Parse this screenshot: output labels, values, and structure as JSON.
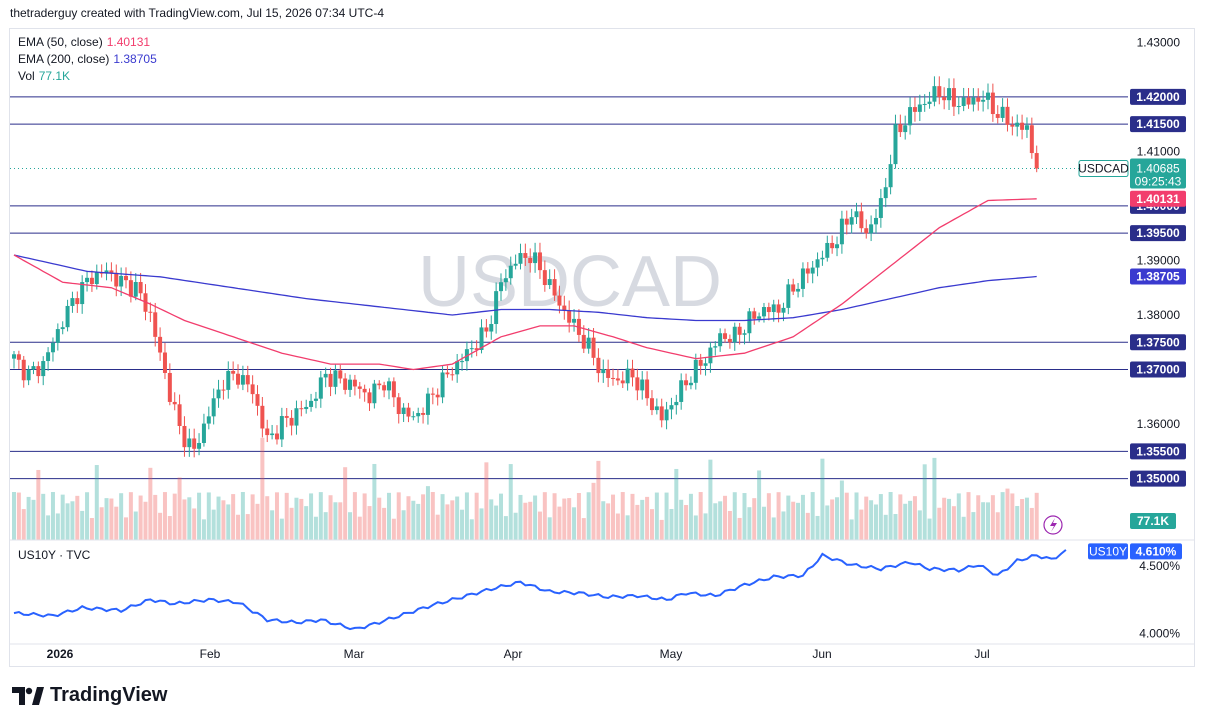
{
  "header": "thetraderguy created with TradingView.com, Jul 15, 2026 07:34 UTC-4",
  "legend": {
    "ema50_label": "EMA (50, close)",
    "ema50_value": "1.40131",
    "ema200_label": "EMA (200, close)",
    "ema200_value": "1.38705",
    "vol_label": "Vol",
    "vol_value": "77.1K"
  },
  "watermark": "USDCAD",
  "indicator_label": "US10Y · TVC",
  "brand": "TradingView",
  "colors": {
    "up": "#26a69a",
    "down": "#ef5350",
    "ema50": "#f23d6d",
    "ema200": "#3a3acf",
    "hline": "#2a2e8a",
    "us10y": "#2962ff",
    "price_badge": "#26a69a"
  },
  "chart_data": {
    "type": "candlestick",
    "symbol": "USDCAD",
    "ylim": [
      1.3448,
      1.4317
    ],
    "y_ticks": [
      "1.43000",
      "1.41000",
      "1.39000",
      "1.38000",
      "1.36000"
    ],
    "x_ticks": [
      "2026",
      "Feb",
      "Mar",
      "Apr",
      "May",
      "Jun",
      "Jul"
    ],
    "horizontal_levels": [
      1.42,
      1.415,
      1.4,
      1.395,
      1.375,
      1.37,
      1.355,
      1.35
    ],
    "level_labels": [
      "1.42000",
      "1.41500",
      "1.40000",
      "1.39500",
      "1.37500",
      "1.37000",
      "1.35500",
      "1.35000"
    ],
    "last_price": {
      "label": "USDCAD",
      "value": "1.40685",
      "countdown": "09:25:43",
      "price": 1.40685
    },
    "ema50_tag": "1.40131",
    "ema200_tag": "1.38705",
    "volume_tag": "77.1K",
    "candle_anchors": [
      [
        0,
        1.372
      ],
      [
        3,
        1.369
      ],
      [
        6,
        1.371
      ],
      [
        10,
        1.379
      ],
      [
        13,
        1.384
      ],
      [
        16,
        1.387
      ],
      [
        19,
        1.388
      ],
      [
        22,
        1.386
      ],
      [
        25,
        1.385
      ],
      [
        28,
        1.38
      ],
      [
        31,
        1.369
      ],
      [
        34,
        1.359
      ],
      [
        37,
        1.355
      ],
      [
        40,
        1.362
      ],
      [
        43,
        1.368
      ],
      [
        46,
        1.369
      ],
      [
        49,
        1.366
      ],
      [
        52,
        1.357
      ],
      [
        55,
        1.36
      ],
      [
        58,
        1.362
      ],
      [
        61,
        1.364
      ],
      [
        64,
        1.369
      ],
      [
        67,
        1.368
      ],
      [
        70,
        1.367
      ],
      [
        73,
        1.365
      ],
      [
        76,
        1.368
      ],
      [
        79,
        1.363
      ],
      [
        82,
        1.361
      ],
      [
        85,
        1.364
      ],
      [
        88,
        1.368
      ],
      [
        91,
        1.371
      ],
      [
        94,
        1.374
      ],
      [
        97,
        1.377
      ],
      [
        100,
        1.386
      ],
      [
        103,
        1.39
      ],
      [
        106,
        1.391
      ],
      [
        109,
        1.387
      ],
      [
        112,
        1.382
      ],
      [
        115,
        1.378
      ],
      [
        118,
        1.374
      ],
      [
        121,
        1.369
      ],
      [
        124,
        1.368
      ],
      [
        127,
        1.369
      ],
      [
        130,
        1.365
      ],
      [
        133,
        1.361
      ],
      [
        136,
        1.365
      ],
      [
        139,
        1.369
      ],
      [
        142,
        1.372
      ],
      [
        145,
        1.376
      ],
      [
        148,
        1.376
      ],
      [
        151,
        1.379
      ],
      [
        154,
        1.381
      ],
      [
        157,
        1.381
      ],
      [
        160,
        1.385
      ],
      [
        163,
        1.388
      ],
      [
        166,
        1.391
      ],
      [
        169,
        1.394
      ],
      [
        172,
        1.399
      ],
      [
        175,
        1.395
      ],
      [
        178,
        1.4
      ],
      [
        181,
        1.413
      ],
      [
        184,
        1.417
      ],
      [
        187,
        1.419
      ],
      [
        190,
        1.421
      ],
      [
        193,
        1.419
      ],
      [
        196,
        1.419
      ],
      [
        199,
        1.42
      ],
      [
        202,
        1.417
      ],
      [
        205,
        1.415
      ],
      [
        208,
        1.414
      ],
      [
        210,
        1.407
      ]
    ],
    "ema50_anchors": [
      [
        0,
        1.391
      ],
      [
        10,
        1.386
      ],
      [
        20,
        1.385
      ],
      [
        28,
        1.382
      ],
      [
        35,
        1.379
      ],
      [
        45,
        1.376
      ],
      [
        55,
        1.373
      ],
      [
        65,
        1.371
      ],
      [
        75,
        1.371
      ],
      [
        82,
        1.37
      ],
      [
        90,
        1.371
      ],
      [
        100,
        1.376
      ],
      [
        108,
        1.378
      ],
      [
        115,
        1.378
      ],
      [
        123,
        1.376
      ],
      [
        130,
        1.374
      ],
      [
        140,
        1.372
      ],
      [
        150,
        1.373
      ],
      [
        160,
        1.376
      ],
      [
        170,
        1.382
      ],
      [
        180,
        1.389
      ],
      [
        190,
        1.396
      ],
      [
        200,
        1.401
      ],
      [
        210,
        1.4013
      ]
    ],
    "ema200_anchors": [
      [
        0,
        1.391
      ],
      [
        15,
        1.388
      ],
      [
        30,
        1.387
      ],
      [
        45,
        1.385
      ],
      [
        60,
        1.383
      ],
      [
        75,
        1.3815
      ],
      [
        90,
        1.38
      ],
      [
        100,
        1.381
      ],
      [
        110,
        1.381
      ],
      [
        120,
        1.3805
      ],
      [
        130,
        1.3795
      ],
      [
        140,
        1.379
      ],
      [
        150,
        1.379
      ],
      [
        160,
        1.3795
      ],
      [
        170,
        1.381
      ],
      [
        180,
        1.383
      ],
      [
        190,
        1.385
      ],
      [
        200,
        1.3863
      ],
      [
        210,
        1.38705
      ]
    ],
    "us10y": {
      "label": "US10Y",
      "value": "4.610%",
      "ylim": [
        3.95,
        4.65
      ],
      "ticks": [
        "4.500%",
        "4.000%"
      ],
      "anchors": [
        [
          0,
          4.15
        ],
        [
          8,
          4.13
        ],
        [
          14,
          4.19
        ],
        [
          22,
          4.17
        ],
        [
          28,
          4.25
        ],
        [
          33,
          4.22
        ],
        [
          40,
          4.25
        ],
        [
          46,
          4.23
        ],
        [
          52,
          4.1
        ],
        [
          58,
          4.08
        ],
        [
          63,
          4.1
        ],
        [
          70,
          4.03
        ],
        [
          74,
          4.07
        ],
        [
          80,
          4.14
        ],
        [
          86,
          4.21
        ],
        [
          92,
          4.27
        ],
        [
          98,
          4.33
        ],
        [
          104,
          4.38
        ],
        [
          110,
          4.31
        ],
        [
          116,
          4.3
        ],
        [
          122,
          4.27
        ],
        [
          128,
          4.28
        ],
        [
          134,
          4.25
        ],
        [
          138,
          4.3
        ],
        [
          144,
          4.28
        ],
        [
          150,
          4.36
        ],
        [
          156,
          4.42
        ],
        [
          162,
          4.43
        ],
        [
          166,
          4.58
        ],
        [
          172,
          4.51
        ],
        [
          178,
          4.48
        ],
        [
          184,
          4.53
        ],
        [
          188,
          4.48
        ],
        [
          194,
          4.47
        ],
        [
          198,
          4.51
        ],
        [
          202,
          4.43
        ],
        [
          206,
          4.54
        ],
        [
          210,
          4.58
        ],
        [
          213,
          4.55
        ],
        [
          216,
          4.61
        ]
      ]
    }
  }
}
